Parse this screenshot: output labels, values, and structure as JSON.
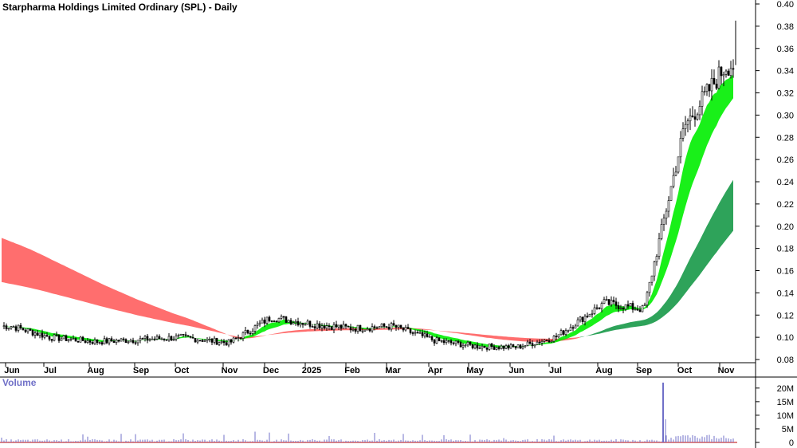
{
  "chart_data": [
    {
      "type": "candlestick",
      "title": "Starpharma Holdings Limited Ordinary (SPL) - Daily",
      "x_tick_labels": [
        "Jun",
        "Jul",
        "Aug",
        "Sep",
        "Oct",
        "Nov",
        "Dec",
        "2025",
        "Feb",
        "Mar",
        "Apr",
        "May",
        "Jun",
        "Jul",
        "Aug",
        "Sep",
        "Oct",
        "Nov"
      ],
      "y_tick_labels": [
        "0.40",
        "0.38",
        "0.36",
        "0.34",
        "0.32",
        "0.30",
        "0.28",
        "0.26",
        "0.24",
        "0.22",
        "0.20",
        "0.18",
        "0.16",
        "0.14",
        "0.12",
        "0.10",
        "0.08"
      ],
      "ylim": [
        0.075,
        0.4
      ],
      "grid": false,
      "colors": {
        "candle": "#000000",
        "long_band": "#ff6666",
        "long_band_light": "#ffb0b0",
        "short_band_up": "#00ee00",
        "short_band_down": "#ff6a00",
        "long_band_up": "#2ea35a"
      },
      "close_series": [
        {
          "month": "Jun",
          "close": 0.11
        },
        {
          "month": "Jul",
          "close": 0.1
        },
        {
          "month": "Aug",
          "close": 0.096
        },
        {
          "month": "Sep",
          "close": 0.098
        },
        {
          "month": "Oct",
          "close": 0.1
        },
        {
          "month": "Nov",
          "close": 0.095
        },
        {
          "month": "Dec",
          "close": 0.118
        },
        {
          "month": "2025",
          "close": 0.112
        },
        {
          "month": "Feb",
          "close": 0.108
        },
        {
          "month": "Mar",
          "close": 0.11
        },
        {
          "month": "Apr",
          "close": 0.097
        },
        {
          "month": "May",
          "close": 0.092
        },
        {
          "month": "Jun",
          "close": 0.091
        },
        {
          "month": "Jul",
          "close": 0.1
        },
        {
          "month": "Aug",
          "close": 0.131
        },
        {
          "month": "Sep",
          "close": 0.125
        },
        {
          "month": "Oct",
          "close": 0.29
        },
        {
          "month": "Nov",
          "close": 0.345
        }
      ],
      "last_candle_high": 0.385
    },
    {
      "type": "bar",
      "title": "Volume",
      "y_tick_labels": [
        "20M",
        "15M",
        "10M",
        "5M",
        "0"
      ],
      "ylim": [
        0,
        22000000
      ],
      "spike": {
        "month": "Sep",
        "volume": 22000000
      },
      "colors": {
        "bar": "#7070c8",
        "baseline": "#c00000"
      }
    }
  ]
}
